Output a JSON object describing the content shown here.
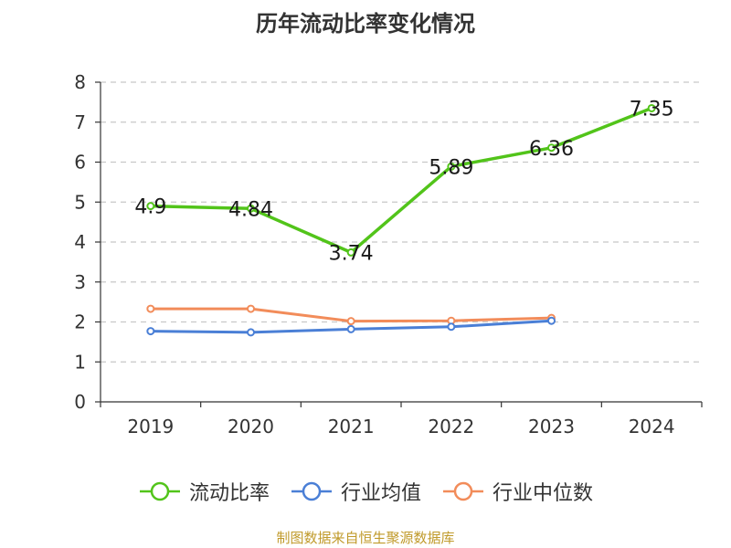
{
  "title": "历年流动比率变化情况",
  "source": "制图数据来自恒生聚源数据库",
  "chart_data": {
    "type": "line",
    "categories": [
      "2019",
      "2020",
      "2021",
      "2022",
      "2023",
      "2024"
    ],
    "ylim": [
      0,
      8
    ],
    "yticks": [
      0,
      1,
      2,
      3,
      4,
      5,
      6,
      7,
      8
    ],
    "grid": true,
    "legend_position": "bottom",
    "series": [
      {
        "name": "流动比率",
        "color": "#52c41a",
        "values": [
          4.9,
          4.84,
          3.74,
          5.89,
          6.36,
          7.35
        ],
        "labels": [
          "4.9",
          "4.84",
          "3.74",
          "5.89",
          "6.36",
          "7.35"
        ]
      },
      {
        "name": "行业均值",
        "color": "#4a7fd6",
        "values": [
          1.77,
          1.74,
          1.82,
          1.88,
          2.03,
          null
        ]
      },
      {
        "name": "行业中位数",
        "color": "#f28c5a",
        "values": [
          2.33,
          2.33,
          2.02,
          2.03,
          2.1,
          null
        ]
      }
    ]
  }
}
